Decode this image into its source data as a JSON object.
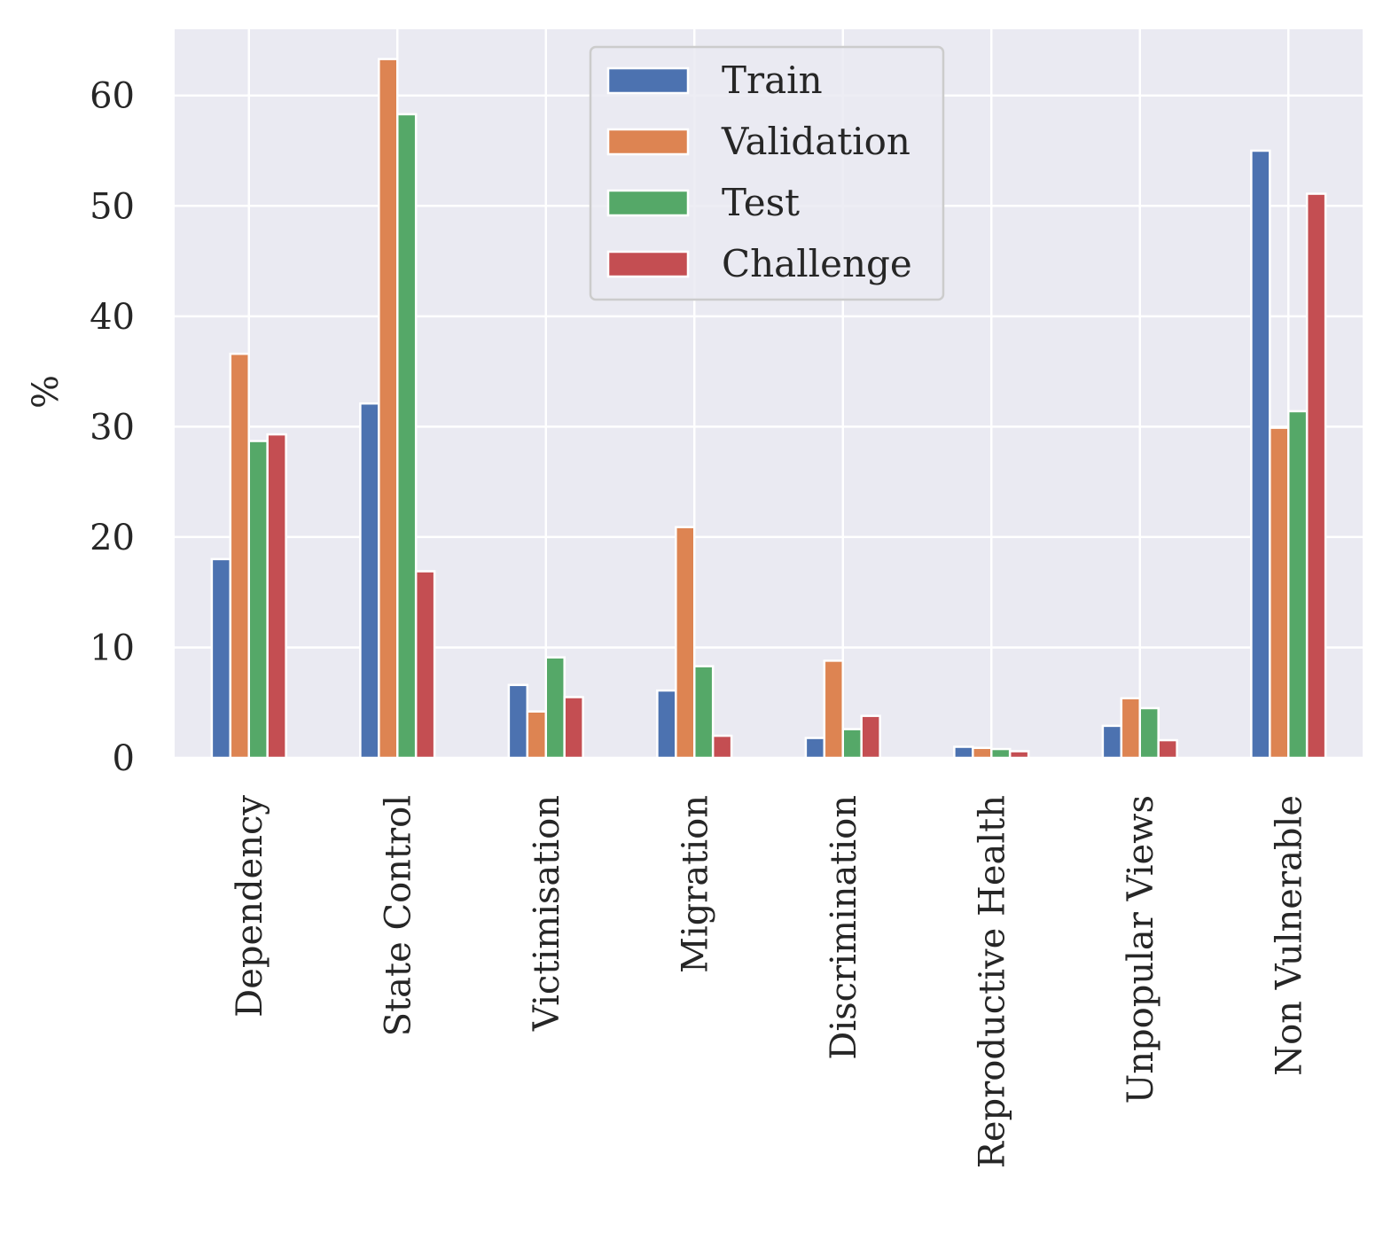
{
  "chart_data": {
    "type": "bar",
    "title": "",
    "xlabel": "",
    "ylabel": "%",
    "ylim": [
      0,
      66
    ],
    "yticks": [
      0,
      10,
      20,
      30,
      40,
      50,
      60
    ],
    "categories": [
      "Dependency",
      "State Control",
      "Victimisation",
      "Migration",
      "Discrimination",
      "Reproductive Health",
      "Unpopular Views",
      "Non Vulnerable"
    ],
    "series": [
      {
        "name": "Train",
        "color": "#4c72b0",
        "values": [
          18.0,
          32.1,
          6.6,
          6.1,
          1.8,
          1.0,
          2.9,
          55.0
        ]
      },
      {
        "name": "Validation",
        "color": "#dd8452",
        "values": [
          36.6,
          63.3,
          4.2,
          20.9,
          8.8,
          0.9,
          5.4,
          29.9
        ]
      },
      {
        "name": "Test",
        "color": "#55a868",
        "values": [
          28.7,
          58.3,
          9.1,
          8.3,
          2.6,
          0.8,
          4.5,
          31.4
        ]
      },
      {
        "name": "Challenge",
        "color": "#c44e52",
        "values": [
          29.3,
          16.9,
          5.5,
          2.0,
          3.8,
          0.6,
          1.6,
          51.1
        ]
      }
    ],
    "grid": true,
    "legend_position": "upper center"
  }
}
